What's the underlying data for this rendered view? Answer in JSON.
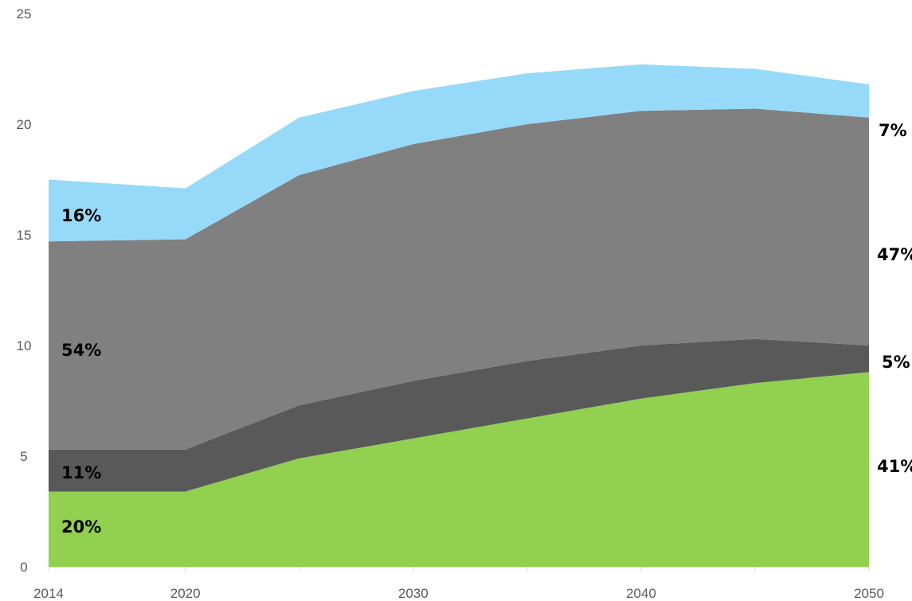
{
  "chart_data": {
    "type": "area",
    "stacked": true,
    "x": [
      2014,
      2020,
      2025,
      2030,
      2035,
      2040,
      2045,
      2050
    ],
    "series": [
      {
        "color": "#92d050",
        "values": [
          3.4,
          3.4,
          4.9,
          5.8,
          6.7,
          7.6,
          8.3,
          8.8
        ]
      },
      {
        "color": "#595959",
        "values": [
          1.9,
          1.9,
          2.4,
          2.6,
          2.6,
          2.4,
          2.0,
          1.2
        ]
      },
      {
        "color": "#808080",
        "values": [
          9.4,
          9.5,
          10.4,
          10.7,
          10.7,
          10.6,
          10.4,
          10.3
        ]
      },
      {
        "color": "#97d9f8",
        "values": [
          2.8,
          2.3,
          2.6,
          2.4,
          2.3,
          2.1,
          1.8,
          1.5
        ]
      }
    ],
    "xticks": [
      "2014",
      "2020",
      "2030",
      "2040",
      "2050"
    ],
    "xtick_values": [
      2014,
      2020,
      2030,
      2040,
      2050
    ],
    "yticks": [
      "0",
      "5",
      "10",
      "15",
      "20",
      "25"
    ],
    "ytick_values": [
      0,
      5,
      10,
      15,
      20,
      25
    ],
    "ylim": [
      0,
      25
    ],
    "xlim": [
      2014,
      2050
    ],
    "grid": false,
    "annotations_start": [
      "20%",
      "11%",
      "54%",
      "16%"
    ],
    "annotations_end": [
      "41%",
      "5%",
      "47%",
      "7%"
    ]
  }
}
